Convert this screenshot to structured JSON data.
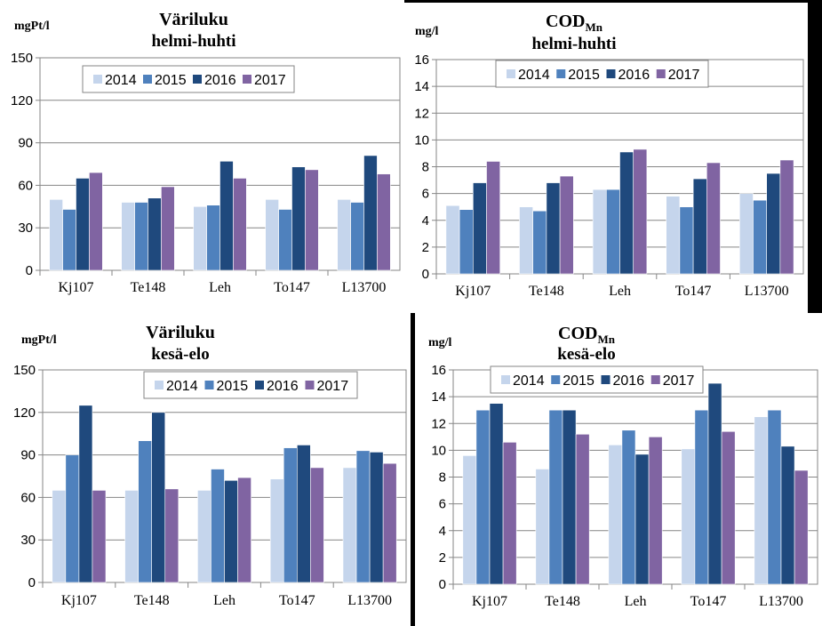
{
  "colors": {
    "2014": "#c5d5ec",
    "2015": "#4f81bd",
    "2016": "#1f497d",
    "2017": "#8064a2"
  },
  "chart_data": [
    {
      "type": "bar",
      "unit": "mgPt/l",
      "title_line1": "Väriluku",
      "title_line2": "helmi-huhti",
      "categories": [
        "Kj107",
        "Te148",
        "Leh",
        "To147",
        "L13700"
      ],
      "ylim": [
        0,
        150
      ],
      "yticks": [
        0,
        30,
        60,
        90,
        120,
        150
      ],
      "legend": [
        "2014",
        "2015",
        "2016",
        "2017"
      ],
      "series": [
        {
          "name": "2014",
          "values": [
            50,
            48,
            45,
            50,
            50
          ]
        },
        {
          "name": "2015",
          "values": [
            43,
            48,
            46,
            43,
            48
          ]
        },
        {
          "name": "2016",
          "values": [
            65,
            51,
            77,
            73,
            81
          ]
        },
        {
          "name": "2017",
          "values": [
            69,
            59,
            65,
            71,
            68
          ]
        }
      ]
    },
    {
      "type": "bar",
      "unit": "mg/l",
      "title_main": "COD",
      "title_sub": "Mn",
      "title_line2": "helmi-huhti",
      "categories": [
        "Kj107",
        "Te148",
        "Leh",
        "To147",
        "L13700"
      ],
      "ylim": [
        0,
        16
      ],
      "yticks": [
        0,
        2,
        4,
        6,
        8,
        10,
        12,
        14,
        16
      ],
      "legend": [
        "2014",
        "2015",
        "2016",
        "2017"
      ],
      "series": [
        {
          "name": "2014",
          "values": [
            5.1,
            5.0,
            6.3,
            5.8,
            6.0
          ]
        },
        {
          "name": "2015",
          "values": [
            4.8,
            4.7,
            6.3,
            5.0,
            5.5
          ]
        },
        {
          "name": "2016",
          "values": [
            6.8,
            6.8,
            9.1,
            7.1,
            7.5
          ]
        },
        {
          "name": "2017",
          "values": [
            8.4,
            7.3,
            9.3,
            8.3,
            8.5
          ]
        }
      ]
    },
    {
      "type": "bar",
      "unit": "mgPt/l",
      "title_line1": "Väriluku",
      "title_line2": "kesä-elo",
      "categories": [
        "Kj107",
        "Te148",
        "Leh",
        "To147",
        "L13700"
      ],
      "ylim": [
        0,
        150
      ],
      "yticks": [
        0,
        30,
        60,
        90,
        120,
        150
      ],
      "legend": [
        "2014",
        "2015",
        "2016",
        "2017"
      ],
      "series": [
        {
          "name": "2014",
          "values": [
            65,
            65,
            65,
            73,
            81
          ]
        },
        {
          "name": "2015",
          "values": [
            90,
            100,
            80,
            95,
            93
          ]
        },
        {
          "name": "2016",
          "values": [
            125,
            120,
            72,
            97,
            92
          ]
        },
        {
          "name": "2017",
          "values": [
            65,
            66,
            74,
            81,
            84
          ]
        }
      ]
    },
    {
      "type": "bar",
      "unit": "mg/l",
      "title_main": "COD",
      "title_sub": "Mn",
      "title_line2": "kesä-elo",
      "categories": [
        "Kj107",
        "Te148",
        "Leh",
        "To147",
        "L13700"
      ],
      "ylim": [
        0,
        16
      ],
      "yticks": [
        0,
        2,
        4,
        6,
        8,
        10,
        12,
        14,
        16
      ],
      "legend": [
        "2014",
        "2015",
        "2016",
        "2017"
      ],
      "series": [
        {
          "name": "2014",
          "values": [
            9.6,
            8.6,
            10.4,
            10.1,
            12.5
          ]
        },
        {
          "name": "2015",
          "values": [
            13.0,
            13.0,
            11.5,
            13.0,
            13.0
          ]
        },
        {
          "name": "2016",
          "values": [
            13.5,
            13.0,
            9.7,
            15.0,
            10.3
          ]
        },
        {
          "name": "2017",
          "values": [
            10.6,
            11.2,
            11.0,
            11.4,
            8.5
          ]
        }
      ]
    }
  ]
}
